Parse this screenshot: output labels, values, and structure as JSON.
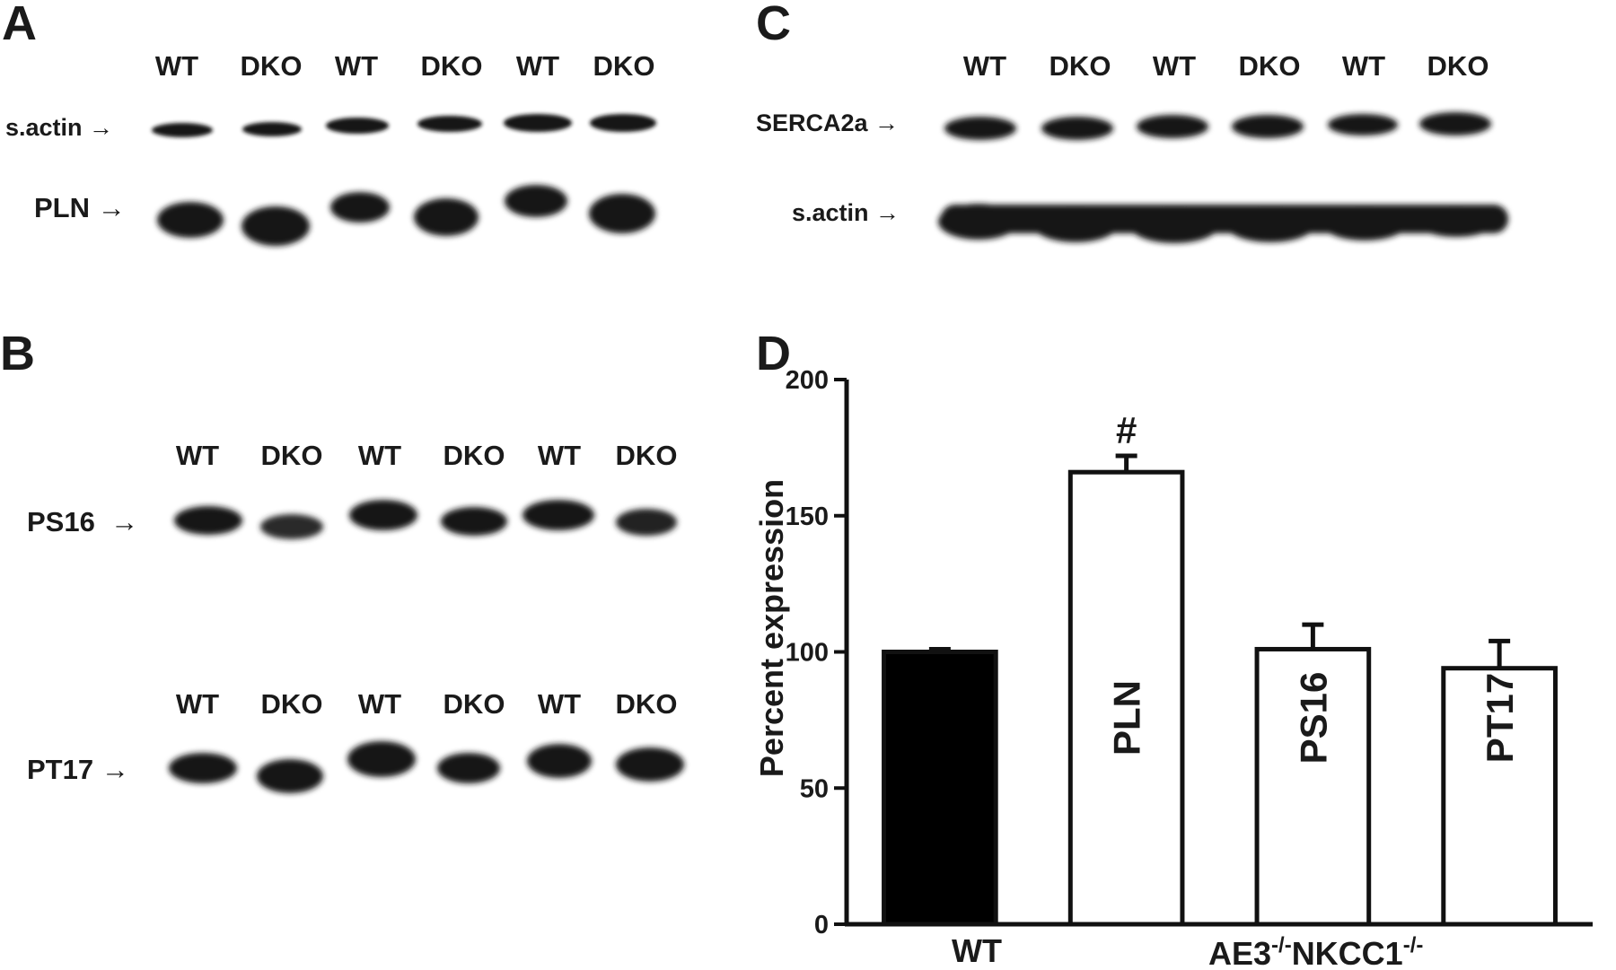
{
  "panels": {
    "a": {
      "letter": "A",
      "lanes": [
        "WT",
        "DKO",
        "WT",
        "DKO",
        "WT",
        "DKO"
      ],
      "band1_label": "s.actin →",
      "band2_label": "PLN →"
    },
    "b": {
      "letter": "B",
      "lanes_top": [
        "WT",
        "DKO",
        "WT",
        "DKO",
        "WT",
        "DKO"
      ],
      "band1_label": "PS16  →",
      "lanes_bottom": [
        "WT",
        "DKO",
        "WT",
        "DKO",
        "WT",
        "DKO"
      ],
      "band2_label": "PT17 →"
    },
    "c": {
      "letter": "C",
      "lanes": [
        "WT",
        "DKO",
        "WT",
        "DKO",
        "WT",
        "DKO"
      ],
      "band1_label": "SERCA2a →",
      "band2_label": "s.actin →"
    },
    "d": {
      "letter": "D"
    }
  },
  "chart_data": {
    "type": "bar",
    "categories": [
      "WT",
      "PLN",
      "PS16",
      "PT17"
    ],
    "values": [
      100,
      166,
      101,
      94
    ],
    "errors": [
      1,
      6,
      9,
      10
    ],
    "bar_fill": [
      "#000000",
      "#ffffff",
      "#ffffff",
      "#ffffff"
    ],
    "bar_labels": [
      "",
      "PLN",
      "PS16",
      "PT17"
    ],
    "annotations": [
      {
        "category": "PLN",
        "text": "#"
      }
    ],
    "ylabel": "Percent expression",
    "ylim": [
      0,
      200
    ],
    "yticks": [
      0,
      50,
      100,
      150,
      200
    ],
    "x_group_labels": {
      "wt": "WT",
      "dko_base": "AE3",
      "dko_sup1": "-/-",
      "dko_mid": "NKCC1",
      "dko_sup2": "-/-"
    }
  }
}
